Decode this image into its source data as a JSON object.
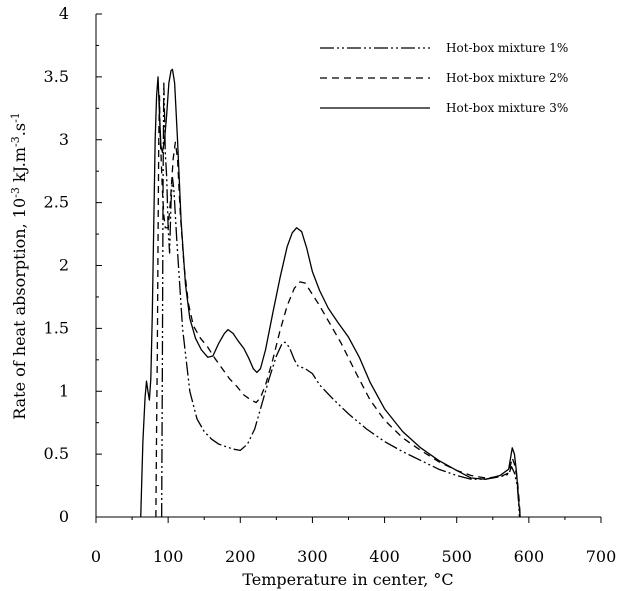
{
  "chart_data": {
    "type": "line",
    "title": "",
    "xlabel": "Temperature in center, °C",
    "ylabel": "Rate of heat absorption, 10-3 kJ.m-3.s-1",
    "ylabel_parts": {
      "base": "Rate of heat absorption, 10",
      "sup1": "-3",
      "mid": " kJ.m",
      "sup2": "-3",
      "mid2": ".s",
      "sup3": "-1"
    },
    "xlim": [
      0,
      700
    ],
    "ylim": [
      0,
      4
    ],
    "x_ticks": [
      "0",
      "100",
      "200",
      "300",
      "400",
      "500",
      "600",
      "700"
    ],
    "y_ticks": [
      "0",
      "0.5",
      "1",
      "1.5",
      "2",
      "2.5",
      "3",
      "3.5",
      "4"
    ],
    "grid": false,
    "legend_position": "top-right",
    "series": [
      {
        "name": "Hot-box mixture 1%",
        "dash": "dash-dot-dot",
        "points": [
          [
            91,
            0
          ],
          [
            92,
            1.2
          ],
          [
            93,
            2.7
          ],
          [
            94,
            3.45
          ],
          [
            95,
            3.2
          ],
          [
            96,
            2.9
          ],
          [
            98,
            2.7
          ],
          [
            100,
            2.3
          ],
          [
            102,
            2.1
          ],
          [
            104,
            2.5
          ],
          [
            106,
            2.7
          ],
          [
            108,
            2.6
          ],
          [
            112,
            2.2
          ],
          [
            120,
            1.5
          ],
          [
            130,
            1.0
          ],
          [
            140,
            0.78
          ],
          [
            150,
            0.68
          ],
          [
            160,
            0.62
          ],
          [
            170,
            0.58
          ],
          [
            180,
            0.56
          ],
          [
            190,
            0.54
          ],
          [
            200,
            0.53
          ],
          [
            210,
            0.58
          ],
          [
            220,
            0.7
          ],
          [
            230,
            0.9
          ],
          [
            240,
            1.1
          ],
          [
            250,
            1.28
          ],
          [
            258,
            1.38
          ],
          [
            262,
            1.39
          ],
          [
            268,
            1.35
          ],
          [
            275,
            1.25
          ],
          [
            280,
            1.2
          ],
          [
            290,
            1.18
          ],
          [
            300,
            1.14
          ],
          [
            310,
            1.05
          ],
          [
            330,
            0.93
          ],
          [
            350,
            0.82
          ],
          [
            375,
            0.7
          ],
          [
            400,
            0.6
          ],
          [
            425,
            0.52
          ],
          [
            450,
            0.45
          ],
          [
            475,
            0.38
          ],
          [
            500,
            0.33
          ],
          [
            520,
            0.3
          ],
          [
            540,
            0.3
          ],
          [
            560,
            0.32
          ],
          [
            572,
            0.34
          ],
          [
            576,
            0.4
          ],
          [
            580,
            0.35
          ],
          [
            584,
            0.25
          ],
          [
            586,
            0.1
          ],
          [
            587,
            0
          ]
        ]
      },
      {
        "name": "Hot-box mixture 2%",
        "dash": "dashed",
        "points": [
          [
            83,
            0
          ],
          [
            84,
            0.7
          ],
          [
            85,
            1.3
          ],
          [
            86,
            2.2
          ],
          [
            87,
            3.0
          ],
          [
            88,
            3.35
          ],
          [
            89,
            3.0
          ],
          [
            90,
            2.9
          ],
          [
            92,
            2.6
          ],
          [
            94,
            2.4
          ],
          [
            96,
            2.3
          ],
          [
            100,
            2.3
          ],
          [
            103,
            2.5
          ],
          [
            107,
            2.85
          ],
          [
            110,
            2.98
          ],
          [
            113,
            2.85
          ],
          [
            117,
            2.4
          ],
          [
            122,
            2.0
          ],
          [
            128,
            1.7
          ],
          [
            135,
            1.52
          ],
          [
            145,
            1.42
          ],
          [
            155,
            1.35
          ],
          [
            165,
            1.26
          ],
          [
            175,
            1.18
          ],
          [
            185,
            1.1
          ],
          [
            195,
            1.04
          ],
          [
            205,
            0.97
          ],
          [
            215,
            0.93
          ],
          [
            222,
            0.91
          ],
          [
            228,
            0.95
          ],
          [
            235,
            1.05
          ],
          [
            245,
            1.25
          ],
          [
            255,
            1.48
          ],
          [
            265,
            1.68
          ],
          [
            275,
            1.82
          ],
          [
            283,
            1.87
          ],
          [
            290,
            1.86
          ],
          [
            300,
            1.77
          ],
          [
            310,
            1.68
          ],
          [
            325,
            1.53
          ],
          [
            340,
            1.38
          ],
          [
            360,
            1.15
          ],
          [
            380,
            0.93
          ],
          [
            400,
            0.77
          ],
          [
            425,
            0.63
          ],
          [
            450,
            0.53
          ],
          [
            475,
            0.44
          ],
          [
            500,
            0.37
          ],
          [
            520,
            0.33
          ],
          [
            540,
            0.31
          ],
          [
            560,
            0.32
          ],
          [
            572,
            0.35
          ],
          [
            577,
            0.47
          ],
          [
            580,
            0.42
          ],
          [
            584,
            0.3
          ],
          [
            587,
            0.1
          ],
          [
            588,
            0
          ]
        ]
      },
      {
        "name": "Hot-box mixture 3%",
        "dash": "solid",
        "points": [
          [
            62,
            0
          ],
          [
            65,
            0.6
          ],
          [
            68,
            0.95
          ],
          [
            70,
            1.08
          ],
          [
            72,
            1.0
          ],
          [
            74,
            0.93
          ],
          [
            76,
            1.1
          ],
          [
            78,
            1.6
          ],
          [
            80,
            2.3
          ],
          [
            82,
            3.0
          ],
          [
            84,
            3.35
          ],
          [
            86,
            3.5
          ],
          [
            88,
            3.2
          ],
          [
            90,
            2.95
          ],
          [
            92,
            2.9
          ],
          [
            95,
            3.0
          ],
          [
            98,
            3.2
          ],
          [
            101,
            3.45
          ],
          [
            104,
            3.55
          ],
          [
            106,
            3.56
          ],
          [
            109,
            3.45
          ],
          [
            113,
            3.0
          ],
          [
            118,
            2.35
          ],
          [
            124,
            1.85
          ],
          [
            130,
            1.58
          ],
          [
            138,
            1.42
          ],
          [
            146,
            1.33
          ],
          [
            155,
            1.27
          ],
          [
            162,
            1.28
          ],
          [
            170,
            1.38
          ],
          [
            178,
            1.46
          ],
          [
            183,
            1.49
          ],
          [
            190,
            1.46
          ],
          [
            197,
            1.4
          ],
          [
            205,
            1.34
          ],
          [
            212,
            1.26
          ],
          [
            218,
            1.18
          ],
          [
            223,
            1.15
          ],
          [
            228,
            1.18
          ],
          [
            235,
            1.33
          ],
          [
            245,
            1.62
          ],
          [
            255,
            1.9
          ],
          [
            265,
            2.15
          ],
          [
            272,
            2.26
          ],
          [
            278,
            2.3
          ],
          [
            285,
            2.27
          ],
          [
            292,
            2.14
          ],
          [
            300,
            1.95
          ],
          [
            310,
            1.8
          ],
          [
            322,
            1.66
          ],
          [
            335,
            1.55
          ],
          [
            350,
            1.43
          ],
          [
            365,
            1.27
          ],
          [
            380,
            1.07
          ],
          [
            400,
            0.86
          ],
          [
            425,
            0.68
          ],
          [
            450,
            0.55
          ],
          [
            475,
            0.45
          ],
          [
            500,
            0.37
          ],
          [
            520,
            0.31
          ],
          [
            540,
            0.3
          ],
          [
            560,
            0.33
          ],
          [
            572,
            0.38
          ],
          [
            577,
            0.55
          ],
          [
            580,
            0.5
          ],
          [
            583,
            0.35
          ],
          [
            586,
            0.12
          ],
          [
            588,
            0
          ]
        ]
      }
    ]
  }
}
